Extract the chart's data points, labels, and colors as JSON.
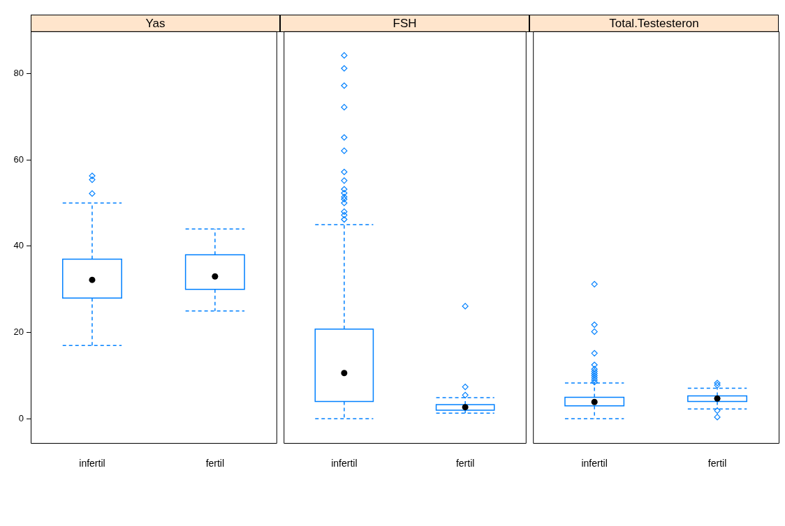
{
  "chart_data": [
    {
      "type": "box",
      "title": "Yas",
      "categories": [
        "infertil",
        "fertil"
      ],
      "color": "#0080ff",
      "marker": "diamond",
      "line_style": "dashed",
      "ylim": [
        -5.6,
        89.8
      ],
      "yticks": [
        0,
        20,
        40,
        60,
        80
      ],
      "boxes": [
        {
          "low": 17,
          "q1": 28,
          "median": 32.2,
          "q3": 37,
          "high": 50,
          "outliers": [
            52.2,
            55.4,
            56.3
          ]
        },
        {
          "low": 25,
          "q1": 30,
          "median": 33,
          "q3": 38,
          "high": 44
        }
      ]
    },
    {
      "type": "box",
      "title": "FSH",
      "categories": [
        "infertil",
        "fertil"
      ],
      "color": "#0080ff",
      "marker": "diamond",
      "line_style": "dashed",
      "ylim": [
        -5.6,
        89.8
      ],
      "yticks": [
        0,
        20,
        40,
        60,
        80
      ],
      "tick_labels": "x",
      "boxes": [
        {
          "low": 0,
          "q1": 4,
          "median": 10.6,
          "q3": 20.8,
          "high": 45,
          "outliers": [
            46.2,
            47.2,
            48,
            50,
            50.9,
            51.4,
            52.3,
            53.2,
            55.2,
            57.2,
            62.1,
            65.2,
            72.2,
            77.2,
            81.2,
            84.2
          ]
        },
        {
          "low": 1.3,
          "q1": 2,
          "median": 2.7,
          "q3": 3.3,
          "high": 4.9,
          "outliers": [
            5.5,
            7.4,
            26.1
          ]
        }
      ]
    },
    {
      "type": "box",
      "title": "Total.Testesteron",
      "categories": [
        "infertil",
        "fertil"
      ],
      "color": "#0080ff",
      "marker": "diamond",
      "line_style": "dashed",
      "ylim": [
        -5.6,
        89.8
      ],
      "yticks": [
        0,
        20,
        40,
        60,
        80
      ],
      "tick_labels": "x",
      "boxes": [
        {
          "low": 0,
          "q1": 3,
          "median": 3.9,
          "q3": 5,
          "high": 8.3,
          "outliers": [
            8.5,
            9,
            9.5,
            10,
            10.5,
            11,
            11.5,
            12.5,
            15.2,
            20.2,
            21.8,
            31.2
          ]
        },
        {
          "low": 2.3,
          "q1": 4,
          "median": 4.7,
          "q3": 5.3,
          "high": 7.1,
          "outliers": [
            0.4,
            1.9,
            7.8,
            8.3
          ]
        }
      ]
    }
  ]
}
